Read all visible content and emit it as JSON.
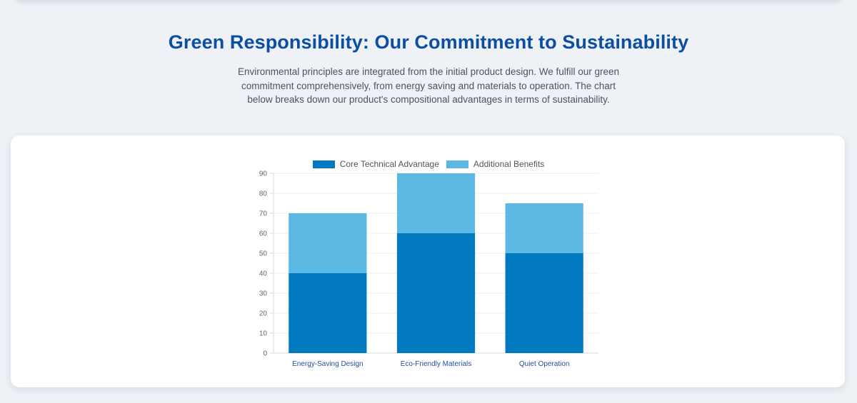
{
  "section": {
    "title": "Green Responsibility: Our Commitment to Sustainability",
    "description": "Environmental principles are integrated from the initial product design. We fulfill our green commitment comprehensively, from energy saving and materials to operation. The chart below breaks down our product's compositional advantages in terms of sustainability."
  },
  "colors": {
    "core": "#0079c1",
    "additional": "#5bb8e3",
    "title": "#0b4ea2",
    "category_label": "#1f4f9c"
  },
  "chart_data": {
    "type": "bar",
    "stacked": true,
    "categories": [
      "Energy-Saving Design",
      "Eco-Friendly Materials",
      "Quiet Operation"
    ],
    "series": [
      {
        "name": "Core Technical Advantage",
        "values": [
          40,
          60,
          50
        ]
      },
      {
        "name": "Additional Benefits",
        "values": [
          30,
          30,
          25
        ]
      }
    ],
    "ylim": [
      0,
      90
    ],
    "yticks": [
      0,
      10,
      20,
      30,
      40,
      50,
      60,
      70,
      80,
      90
    ],
    "legend_position": "top-center",
    "grid": true,
    "title": "",
    "xlabel": "",
    "ylabel": ""
  }
}
